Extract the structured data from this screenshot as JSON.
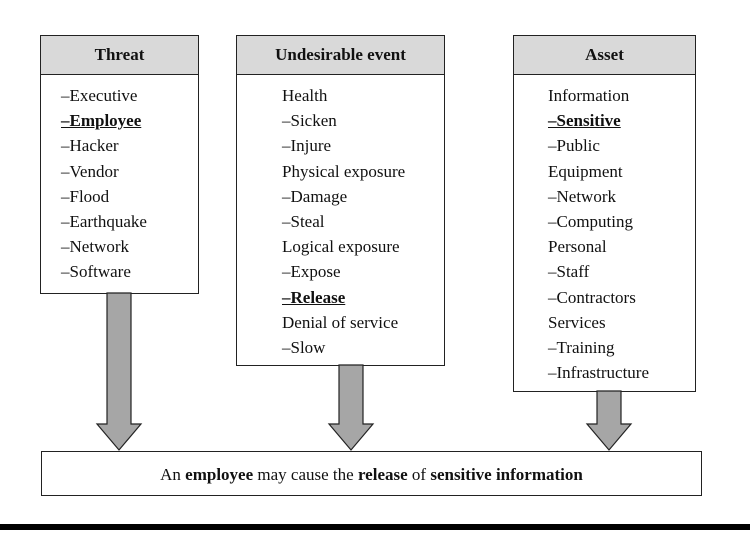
{
  "columns": [
    {
      "id": "threat",
      "title": "Threat",
      "items": [
        {
          "text": "–Executive",
          "highlight": false
        },
        {
          "text": "–Employee",
          "highlight": true
        },
        {
          "text": "–Hacker",
          "highlight": false
        },
        {
          "text": "–Vendor",
          "highlight": false
        },
        {
          "text": "–Flood",
          "highlight": false
        },
        {
          "text": "–Earthquake",
          "highlight": false
        },
        {
          "text": "–Network",
          "highlight": false
        },
        {
          "text": "–Software",
          "highlight": false
        }
      ]
    },
    {
      "id": "undesirable-event",
      "title": "Undesirable event",
      "items": [
        {
          "text": "Health",
          "highlight": false
        },
        {
          "text": "–Sicken",
          "highlight": false
        },
        {
          "text": "–Injure",
          "highlight": false
        },
        {
          "text": "Physical exposure",
          "highlight": false
        },
        {
          "text": "–Damage",
          "highlight": false
        },
        {
          "text": "–Steal",
          "highlight": false
        },
        {
          "text": "Logical exposure",
          "highlight": false
        },
        {
          "text": "–Expose",
          "highlight": false
        },
        {
          "text": "–Release",
          "highlight": true
        },
        {
          "text": "Denial of service",
          "highlight": false
        },
        {
          "text": "–Slow",
          "highlight": false
        }
      ]
    },
    {
      "id": "asset",
      "title": "Asset",
      "items": [
        {
          "text": "Information",
          "highlight": false
        },
        {
          "text": "–Sensitive",
          "highlight": true
        },
        {
          "text": "–Public",
          "highlight": false
        },
        {
          "text": "Equipment",
          "highlight": false
        },
        {
          "text": "–Network",
          "highlight": false
        },
        {
          "text": "–Computing",
          "highlight": false
        },
        {
          "text": "Personal",
          "highlight": false
        },
        {
          "text": "–Staff",
          "highlight": false
        },
        {
          "text": "–Contractors",
          "highlight": false
        },
        {
          "text": "Services",
          "highlight": false
        },
        {
          "text": "–Training",
          "highlight": false
        },
        {
          "text": "–Infrastructure",
          "highlight": false
        }
      ]
    }
  ],
  "result": {
    "parts": [
      {
        "text": "An ",
        "bold": false
      },
      {
        "text": "employee",
        "bold": true
      },
      {
        "text": " may cause the ",
        "bold": false
      },
      {
        "text": "release",
        "bold": true
      },
      {
        "text": " of ",
        "bold": false
      },
      {
        "text": "sensitive information",
        "bold": true
      }
    ]
  },
  "colors": {
    "header_fill": "#d9d9d9",
    "arrow_fill": "#a6a6a6",
    "stroke": "#222222"
  }
}
